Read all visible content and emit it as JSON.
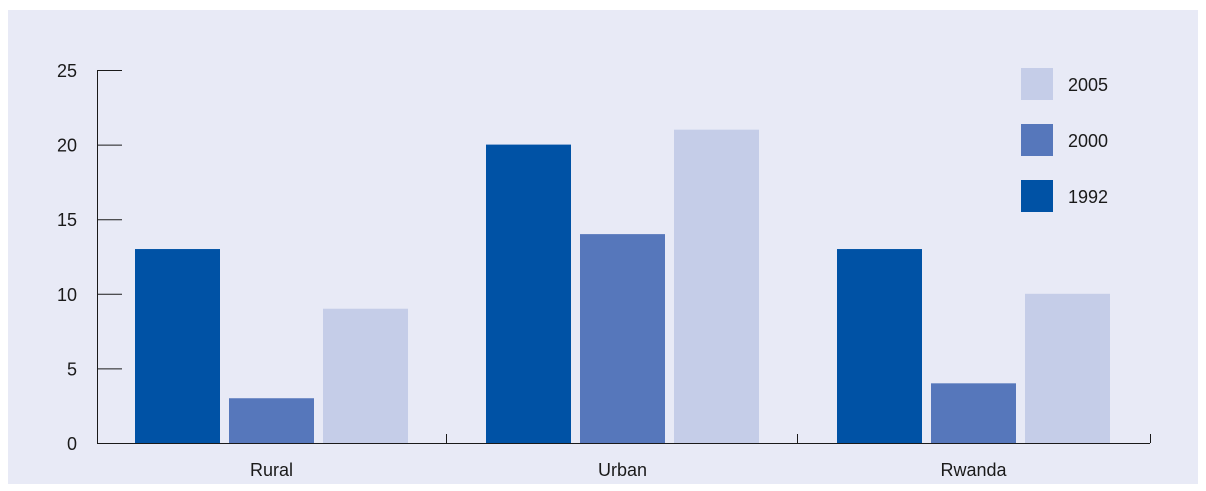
{
  "chart_data": {
    "type": "bar",
    "categories": [
      "Rural",
      "Urban",
      "Rwanda"
    ],
    "series": [
      {
        "name": "1992",
        "values": [
          13,
          20,
          13
        ],
        "color": "#0052a5"
      },
      {
        "name": "2000",
        "values": [
          3,
          14,
          4
        ],
        "color": "#5677bb"
      },
      {
        "name": "2005",
        "values": [
          9,
          21,
          10
        ],
        "color": "#c5cde8"
      }
    ],
    "yticks": [
      "0",
      "5",
      "10",
      "15",
      "20",
      "25"
    ],
    "ylim": [
      0,
      25
    ],
    "legend": {
      "position": "top-right",
      "order": [
        "2005",
        "2000",
        "1992"
      ]
    },
    "grid": false,
    "background_color": "#e8eaf6"
  }
}
